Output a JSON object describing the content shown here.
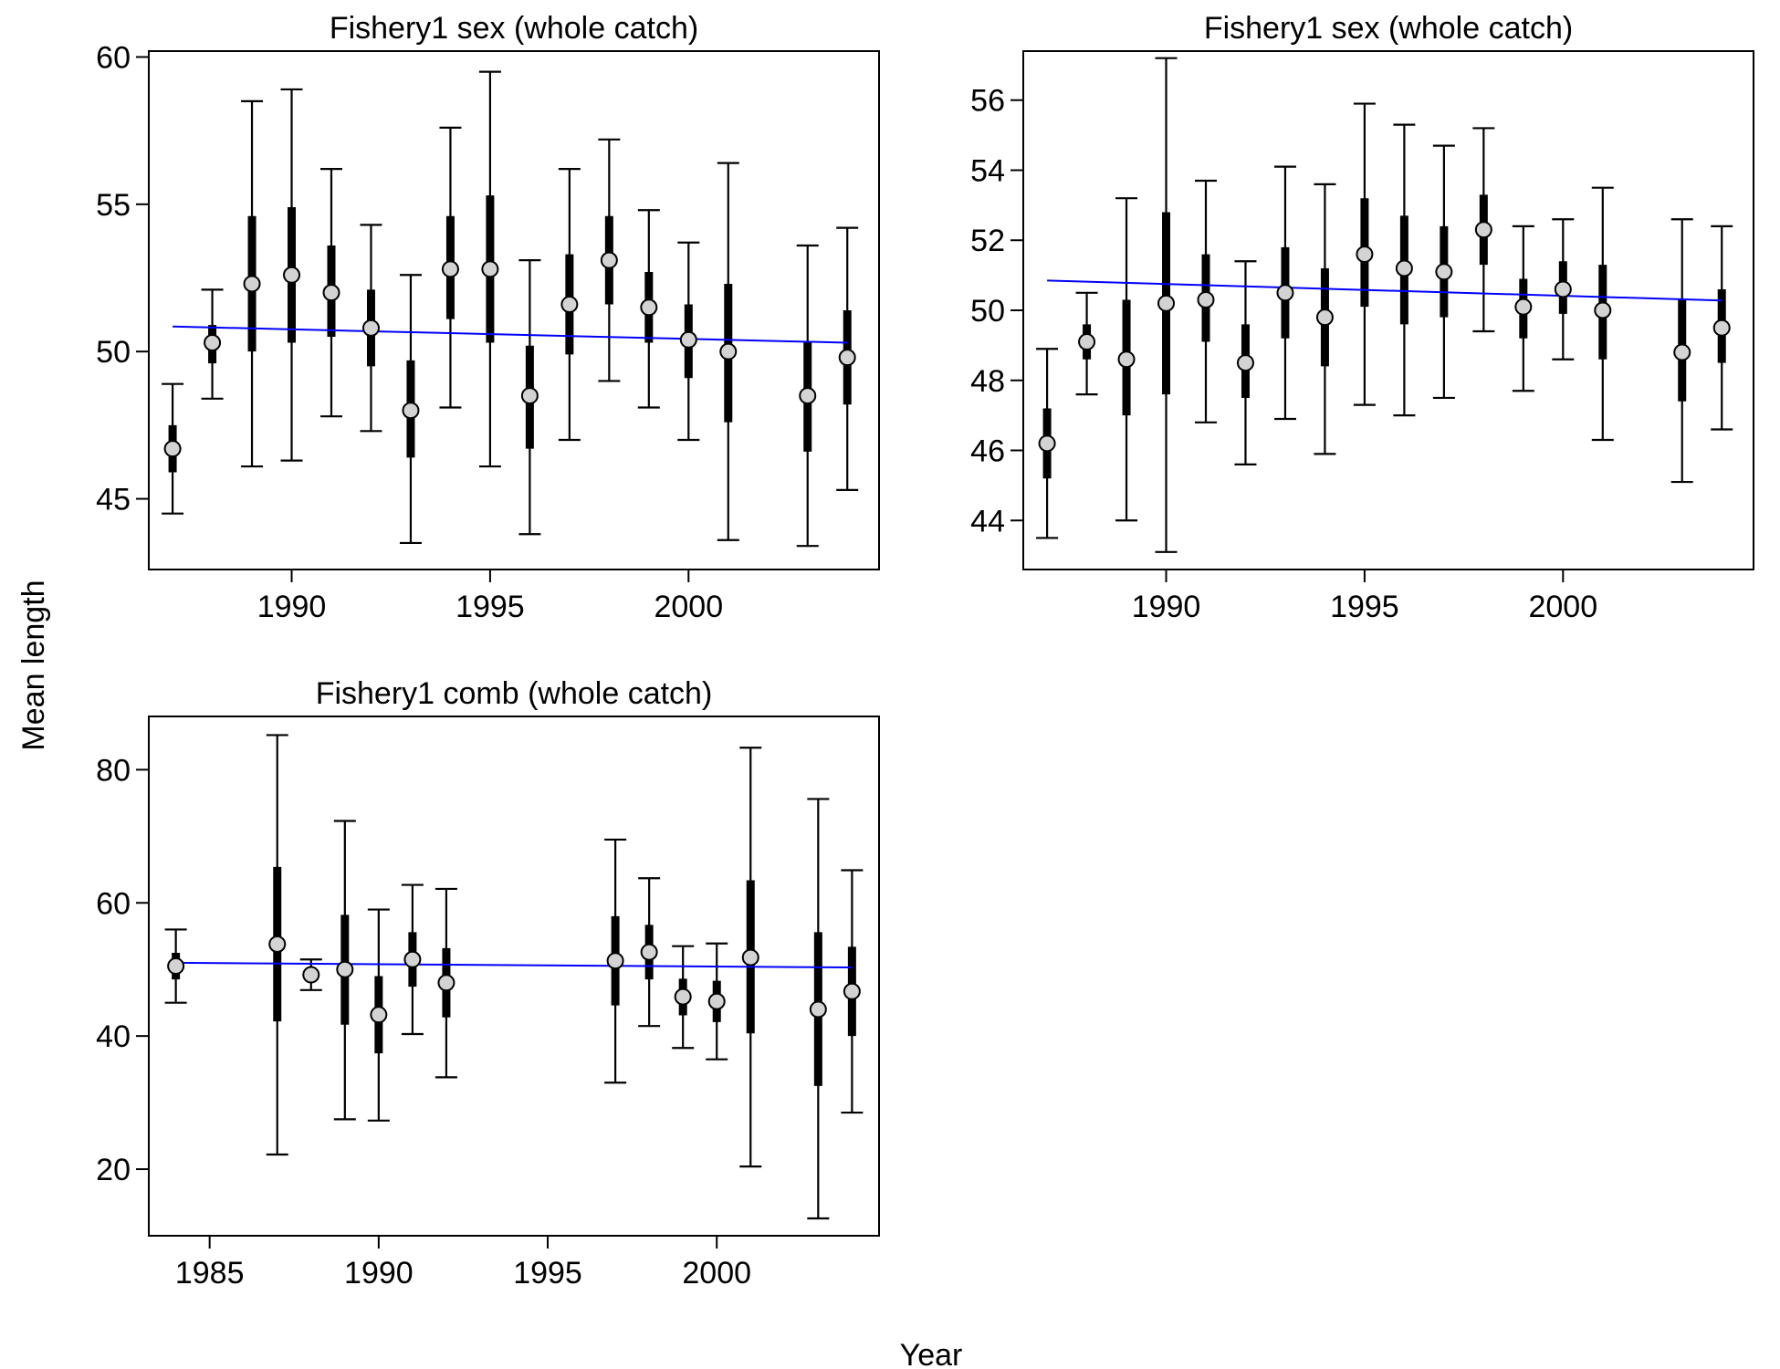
{
  "figure": {
    "xlabel": "Year",
    "ylabel": "Mean length",
    "colors": {
      "trend": "#0000ff",
      "point_fill": "#d3d3d3",
      "ink": "#000000"
    }
  },
  "chart_data": [
    {
      "type": "scatter",
      "title": "Fishery1 sex (whole catch)",
      "xlim": [
        1986.4,
        2004.8
      ],
      "ylim": [
        42.6,
        60.2
      ],
      "xticks": [
        1990,
        1995,
        2000
      ],
      "yticks": [
        45,
        50,
        55,
        60
      ],
      "points": [
        {
          "x": 1987,
          "y": 46.7,
          "ci_inner": [
            45.9,
            47.5
          ],
          "ci_outer": [
            44.5,
            48.9
          ]
        },
        {
          "x": 1988,
          "y": 50.3,
          "ci_inner": [
            49.6,
            50.9
          ],
          "ci_outer": [
            48.4,
            52.1
          ]
        },
        {
          "x": 1989,
          "y": 52.3,
          "ci_inner": [
            50.0,
            54.6
          ],
          "ci_outer": [
            46.1,
            58.5
          ]
        },
        {
          "x": 1990,
          "y": 52.6,
          "ci_inner": [
            50.3,
            54.9
          ],
          "ci_outer": [
            46.3,
            58.9
          ]
        },
        {
          "x": 1991,
          "y": 52.0,
          "ci_inner": [
            50.5,
            53.6
          ],
          "ci_outer": [
            47.8,
            56.2
          ]
        },
        {
          "x": 1992,
          "y": 50.8,
          "ci_inner": [
            49.5,
            52.1
          ],
          "ci_outer": [
            47.3,
            54.3
          ]
        },
        {
          "x": 1993,
          "y": 48.0,
          "ci_inner": [
            46.4,
            49.7
          ],
          "ci_outer": [
            43.5,
            52.6
          ]
        },
        {
          "x": 1994,
          "y": 52.8,
          "ci_inner": [
            51.1,
            54.6
          ],
          "ci_outer": [
            48.1,
            57.6
          ]
        },
        {
          "x": 1995,
          "y": 52.8,
          "ci_inner": [
            50.3,
            55.3
          ],
          "ci_outer": [
            46.1,
            59.5
          ]
        },
        {
          "x": 1996,
          "y": 48.5,
          "ci_inner": [
            46.7,
            50.2
          ],
          "ci_outer": [
            43.8,
            53.1
          ]
        },
        {
          "x": 1997,
          "y": 51.6,
          "ci_inner": [
            49.9,
            53.3
          ],
          "ci_outer": [
            47.0,
            56.2
          ]
        },
        {
          "x": 1998,
          "y": 53.1,
          "ci_inner": [
            51.6,
            54.6
          ],
          "ci_outer": [
            49.0,
            57.2
          ]
        },
        {
          "x": 1999,
          "y": 51.5,
          "ci_inner": [
            50.3,
            52.7
          ],
          "ci_outer": [
            48.1,
            54.8
          ]
        },
        {
          "x": 2000,
          "y": 50.4,
          "ci_inner": [
            49.1,
            51.6
          ],
          "ci_outer": [
            47.0,
            53.7
          ]
        },
        {
          "x": 2001,
          "y": 50.0,
          "ci_inner": [
            47.6,
            52.3
          ],
          "ci_outer": [
            43.6,
            56.4
          ]
        },
        {
          "x": 2003,
          "y": 48.5,
          "ci_inner": [
            46.6,
            50.3
          ],
          "ci_outer": [
            43.4,
            53.6
          ]
        },
        {
          "x": 2004,
          "y": 49.8,
          "ci_inner": [
            48.2,
            51.4
          ],
          "ci_outer": [
            45.3,
            54.2
          ]
        }
      ],
      "trend": {
        "x": [
          1987,
          2004
        ],
        "y": [
          50.85,
          50.3
        ]
      }
    },
    {
      "type": "scatter",
      "title": "Fishery1 sex (whole catch)",
      "xlim": [
        1986.4,
        2004.8
      ],
      "ylim": [
        42.6,
        57.4
      ],
      "xticks": [
        1990,
        1995,
        2000
      ],
      "yticks": [
        44,
        46,
        48,
        50,
        52,
        54,
        56
      ],
      "points": [
        {
          "x": 1987,
          "y": 46.2,
          "ci_inner": [
            45.2,
            47.2
          ],
          "ci_outer": [
            43.5,
            48.9
          ]
        },
        {
          "x": 1988,
          "y": 49.1,
          "ci_inner": [
            48.6,
            49.6
          ],
          "ci_outer": [
            47.6,
            50.5
          ]
        },
        {
          "x": 1989,
          "y": 48.6,
          "ci_inner": [
            47.0,
            50.3
          ],
          "ci_outer": [
            44.0,
            53.2
          ]
        },
        {
          "x": 1990,
          "y": 50.2,
          "ci_inner": [
            47.6,
            52.8
          ],
          "ci_outer": [
            43.1,
            57.2
          ]
        },
        {
          "x": 1991,
          "y": 50.3,
          "ci_inner": [
            49.1,
            51.6
          ],
          "ci_outer": [
            46.8,
            53.7
          ]
        },
        {
          "x": 1992,
          "y": 48.5,
          "ci_inner": [
            47.5,
            49.6
          ],
          "ci_outer": [
            45.6,
            51.4
          ]
        },
        {
          "x": 1993,
          "y": 50.5,
          "ci_inner": [
            49.2,
            51.8
          ],
          "ci_outer": [
            46.9,
            54.1
          ]
        },
        {
          "x": 1994,
          "y": 49.8,
          "ci_inner": [
            48.4,
            51.2
          ],
          "ci_outer": [
            45.9,
            53.6
          ]
        },
        {
          "x": 1995,
          "y": 51.6,
          "ci_inner": [
            50.1,
            53.2
          ],
          "ci_outer": [
            47.3,
            55.9
          ]
        },
        {
          "x": 1996,
          "y": 51.2,
          "ci_inner": [
            49.6,
            52.7
          ],
          "ci_outer": [
            47.0,
            55.3
          ]
        },
        {
          "x": 1997,
          "y": 51.1,
          "ci_inner": [
            49.8,
            52.4
          ],
          "ci_outer": [
            47.5,
            54.7
          ]
        },
        {
          "x": 1998,
          "y": 52.3,
          "ci_inner": [
            51.3,
            53.3
          ],
          "ci_outer": [
            49.4,
            55.2
          ]
        },
        {
          "x": 1999,
          "y": 50.1,
          "ci_inner": [
            49.2,
            50.9
          ],
          "ci_outer": [
            47.7,
            52.4
          ]
        },
        {
          "x": 2000,
          "y": 50.6,
          "ci_inner": [
            49.9,
            51.4
          ],
          "ci_outer": [
            48.6,
            52.6
          ]
        },
        {
          "x": 2001,
          "y": 50.0,
          "ci_inner": [
            48.6,
            51.3
          ],
          "ci_outer": [
            46.3,
            53.5
          ]
        },
        {
          "x": 2003,
          "y": 48.8,
          "ci_inner": [
            47.4,
            50.3
          ],
          "ci_outer": [
            45.1,
            52.6
          ]
        },
        {
          "x": 2004,
          "y": 49.5,
          "ci_inner": [
            48.5,
            50.6
          ],
          "ci_outer": [
            46.6,
            52.4
          ]
        }
      ],
      "trend": {
        "x": [
          1987,
          2004
        ],
        "y": [
          50.85,
          50.28
        ]
      }
    },
    {
      "type": "scatter",
      "title": "Fishery1 comb (whole catch)",
      "xlim": [
        1983.2,
        2004.8
      ],
      "ylim": [
        10,
        88
      ],
      "xticks": [
        1985,
        1990,
        1995,
        2000
      ],
      "yticks": [
        20,
        40,
        60,
        80
      ],
      "points": [
        {
          "x": 1984,
          "y": 50.5,
          "ci_inner": [
            48.5,
            52.5
          ],
          "ci_outer": [
            45.0,
            56.0
          ]
        },
        {
          "x": 1987,
          "y": 53.8,
          "ci_inner": [
            42.2,
            65.4
          ],
          "ci_outer": [
            22.2,
            85.2
          ]
        },
        {
          "x": 1988,
          "y": 49.2,
          "ci_inner": [
            48.4,
            50.0
          ],
          "ci_outer": [
            46.9,
            51.5
          ]
        },
        {
          "x": 1989,
          "y": 50.0,
          "ci_inner": [
            41.7,
            58.2
          ],
          "ci_outer": [
            27.5,
            72.3
          ]
        },
        {
          "x": 1990,
          "y": 43.2,
          "ci_inner": [
            37.4,
            49.0
          ],
          "ci_outer": [
            27.3,
            59.0
          ]
        },
        {
          "x": 1991,
          "y": 51.5,
          "ci_inner": [
            47.4,
            55.6
          ],
          "ci_outer": [
            40.3,
            62.7
          ]
        },
        {
          "x": 1992,
          "y": 48.0,
          "ci_inner": [
            42.8,
            53.2
          ],
          "ci_outer": [
            33.8,
            62.1
          ]
        },
        {
          "x": 1997,
          "y": 51.3,
          "ci_inner": [
            44.6,
            58.0
          ],
          "ci_outer": [
            33.0,
            69.5
          ]
        },
        {
          "x": 1998,
          "y": 52.6,
          "ci_inner": [
            48.5,
            56.7
          ],
          "ci_outer": [
            41.5,
            63.7
          ]
        },
        {
          "x": 1999,
          "y": 45.9,
          "ci_inner": [
            43.1,
            48.6
          ],
          "ci_outer": [
            38.2,
            53.5
          ]
        },
        {
          "x": 2000,
          "y": 45.2,
          "ci_inner": [
            42.1,
            48.3
          ],
          "ci_outer": [
            36.5,
            53.9
          ]
        },
        {
          "x": 2001,
          "y": 51.8,
          "ci_inner": [
            40.4,
            63.4
          ],
          "ci_outer": [
            20.4,
            83.3
          ]
        },
        {
          "x": 2003,
          "y": 44.0,
          "ci_inner": [
            32.5,
            55.6
          ],
          "ci_outer": [
            12.6,
            75.6
          ]
        },
        {
          "x": 2004,
          "y": 46.7,
          "ci_inner": [
            40.0,
            53.4
          ],
          "ci_outer": [
            28.5,
            64.9
          ]
        }
      ],
      "trend": {
        "x": [
          1984,
          2004
        ],
        "y": [
          51.0,
          50.3
        ]
      }
    }
  ]
}
